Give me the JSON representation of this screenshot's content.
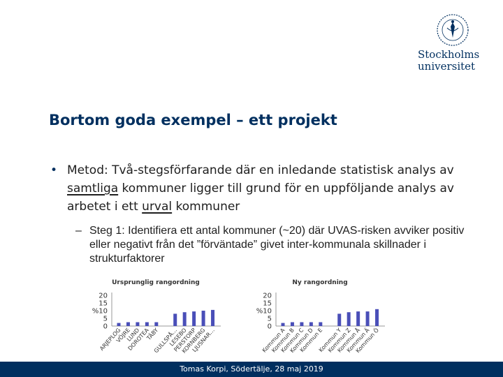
{
  "logo": {
    "line1": "Stockholms",
    "line2": "universitet",
    "color": "#002f5f",
    "icon": "university-seal"
  },
  "title": "Bortom goda exempel – ett projekt",
  "bullet": {
    "part1": "Metod: Två-stegsförfarande där en inledande statistisk analys av ",
    "underline1": "samtliga",
    "part2": " kommuner ligger till grund för en uppföljande analys av arbetet i ett ",
    "underline2": "urval",
    "part3": " kommuner"
  },
  "subbullet": {
    "dash": "–",
    "text": "Steg 1: Identifiera ett antal kommuner (~20) där UVAS-risken avviker positiv eller negativt från det ”förväntade” givet inter-kommunala skillnader i strukturfaktorer"
  },
  "footer": "Tomas Korpi, Södertälje, 28 maj 2019",
  "accent_color": "#4a4fb8",
  "chart_data": [
    {
      "type": "bar",
      "title": "Ursprunglig rangordning",
      "ylim": [
        0,
        20
      ],
      "ticks": [
        "20",
        "15",
        "%10",
        "5",
        "0"
      ],
      "grid": false,
      "categories": [
        "ARJEPLOG",
        "VÖJRE",
        "LUND",
        "DOROTEA",
        "TÄBY",
        "",
        "GULLSPÅ…",
        "LESEBO",
        "PERSTORP",
        "KORNBERG",
        "LJUSNAR…"
      ],
      "values": [
        2,
        2.5,
        2.5,
        2.5,
        2.5,
        0,
        8,
        9,
        9.5,
        10,
        10.5
      ]
    },
    {
      "type": "bar",
      "title": "Ny rangordning",
      "ylim": [
        0,
        20
      ],
      "ticks": [
        "20",
        "15",
        "%10",
        "5",
        "0"
      ],
      "grid": false,
      "categories": [
        "Kommun A",
        "Kommun B",
        "Kommun C",
        "Kommun D",
        "Kommun E",
        "",
        "Kommun Y",
        "Kommun Z",
        "Kommun Å",
        "Kommun Ä",
        "Kommun Ö"
      ],
      "values": [
        2,
        2.5,
        2.5,
        2.5,
        2.5,
        0,
        8,
        9,
        9.5,
        9.5,
        11
      ]
    }
  ]
}
